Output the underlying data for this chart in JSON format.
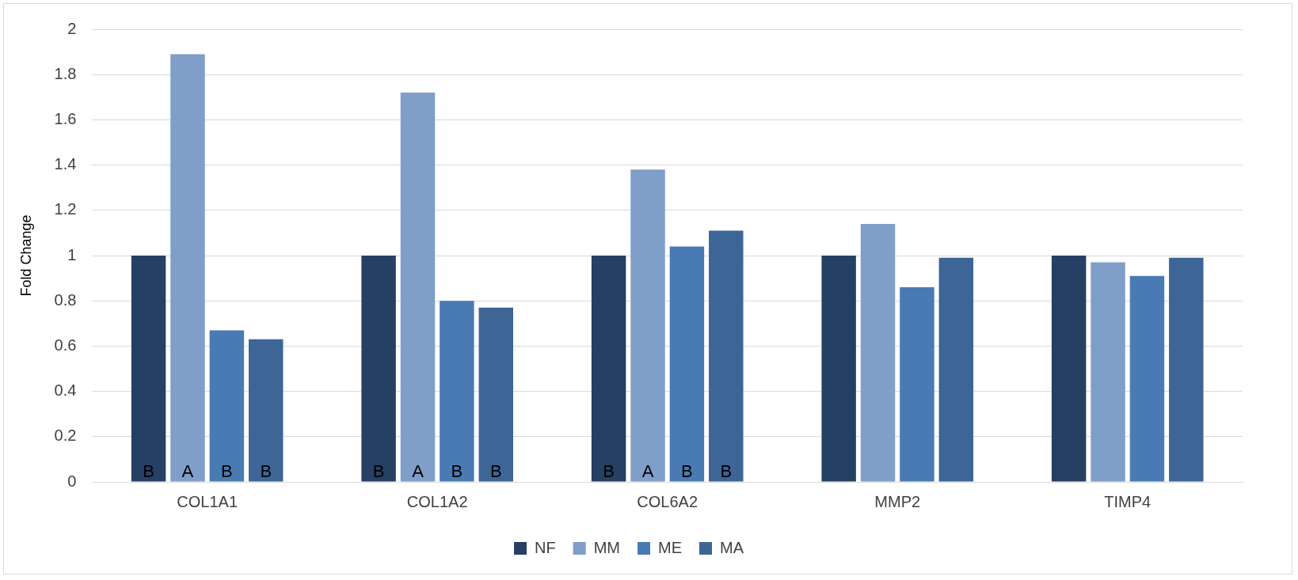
{
  "chart_data": {
    "type": "bar",
    "ylabel": "Fold Change",
    "categories": [
      "COL1A1",
      "COL1A2",
      "COL6A2",
      "MMP2",
      "TIMP4"
    ],
    "series": [
      {
        "name": "NF",
        "color": "#264064",
        "values": [
          1,
          1,
          1,
          1,
          1
        ],
        "value_labels": [
          "B",
          "B",
          "B",
          null,
          null
        ]
      },
      {
        "name": "MM",
        "color": "#7f9ec9",
        "values": [
          1.89,
          1.72,
          1.38,
          1.14,
          0.97
        ],
        "value_labels": [
          "A",
          "A",
          "A",
          null,
          null
        ]
      },
      {
        "name": "ME",
        "color": "#4a7ab3",
        "values": [
          0.67,
          0.8,
          1.04,
          0.86,
          0.91
        ],
        "value_labels": [
          "B",
          "B",
          "B",
          null,
          null
        ]
      },
      {
        "name": "MA",
        "color": "#3d6596",
        "values": [
          0.63,
          0.77,
          1.11,
          0.99,
          0.99
        ],
        "value_labels": [
          "B",
          "B",
          "B",
          null,
          null
        ]
      }
    ],
    "ylim": [
      0,
      2
    ],
    "yticks": [
      0,
      0.2,
      0.4,
      0.6,
      0.8,
      1,
      1.2,
      1.4,
      1.6,
      1.8,
      2
    ],
    "grid": "y",
    "legend": "bottom"
  }
}
